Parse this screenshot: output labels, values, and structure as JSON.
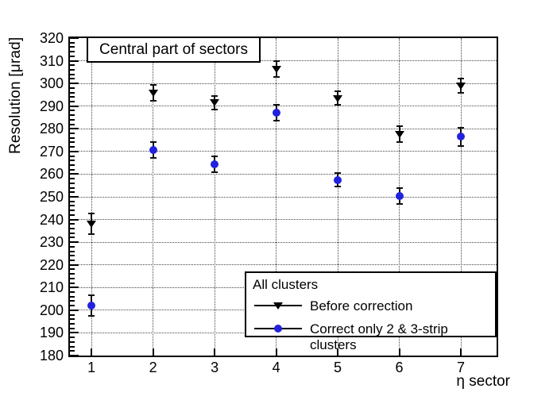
{
  "chart_data": {
    "type": "scatter",
    "title": "Central part of sectors",
    "xlabel": "η sector",
    "ylabel": "Resolution [μrad]",
    "xlim": [
      0.65,
      7.58
    ],
    "ylim": [
      180,
      320
    ],
    "x_ticks": [
      1,
      2,
      3,
      4,
      5,
      6,
      7
    ],
    "y_tick_min": 180,
    "y_tick_max": 320,
    "y_tick_step": 10,
    "y_minor_step": 2,
    "grid": true,
    "legend": {
      "header": "All clusters",
      "position": "bottom-right"
    },
    "x": [
      1,
      2,
      3,
      4,
      5,
      6,
      7
    ],
    "series": [
      {
        "name": "Before correction",
        "marker": "triangle-down",
        "color": "#000000",
        "values": [
          238,
          296,
          291.5,
          306.5,
          293.5,
          277.5,
          299
        ],
        "errors": [
          4.5,
          3.5,
          3,
          3.5,
          3,
          3.5,
          3
        ]
      },
      {
        "name": "Correct only 2 & 3-strip clusters",
        "marker": "circle",
        "color": "#2222dd",
        "values": [
          202,
          270.5,
          264.5,
          287,
          257.5,
          250.5,
          276.5
        ],
        "errors": [
          4.5,
          3.5,
          3.5,
          3.5,
          3,
          3.5,
          4
        ]
      }
    ],
    "colors": {
      "axis": "#000000",
      "grid_dotted": "#444444",
      "error_bar": "#111111",
      "background": "#ffffff"
    }
  }
}
